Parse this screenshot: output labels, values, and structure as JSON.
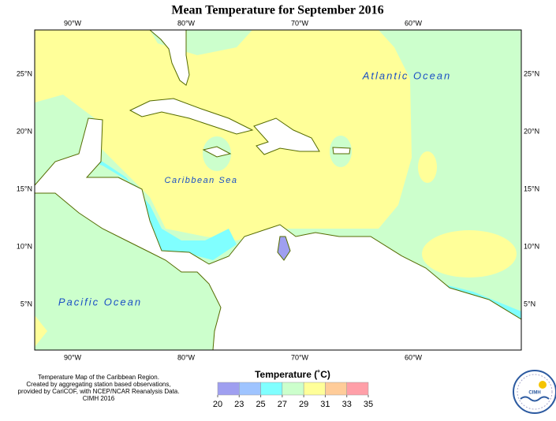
{
  "title": "Mean Temperature for September 2016",
  "map": {
    "longitudes": [
      "90°W",
      "80°W",
      "70°W",
      "60°W"
    ],
    "latitudes": [
      "25°N",
      "20°N",
      "15°N",
      "10°N",
      "5°N"
    ],
    "labels": [
      "Atlantic Ocean",
      "Caribbean Sea",
      "Pacific Ocean"
    ]
  },
  "legend": {
    "title": "Temperature (˚C)",
    "ticks": [
      20,
      23,
      25,
      27,
      29,
      31,
      33,
      35
    ],
    "colors": [
      "#9f9ff0",
      "#9fc4ff",
      "#80ffff",
      "#ccffcc",
      "#ffff99",
      "#ffcc99",
      "#ff9fa8"
    ]
  },
  "footer": [
    "Temperature Map of the Caribbean Region.",
    "Created by aggregating station based observations,",
    "provided by CariCOF, with NCEP/NCAR Reanalysis Data.",
    "CIMH 2016"
  ],
  "logo": "CIMH"
}
